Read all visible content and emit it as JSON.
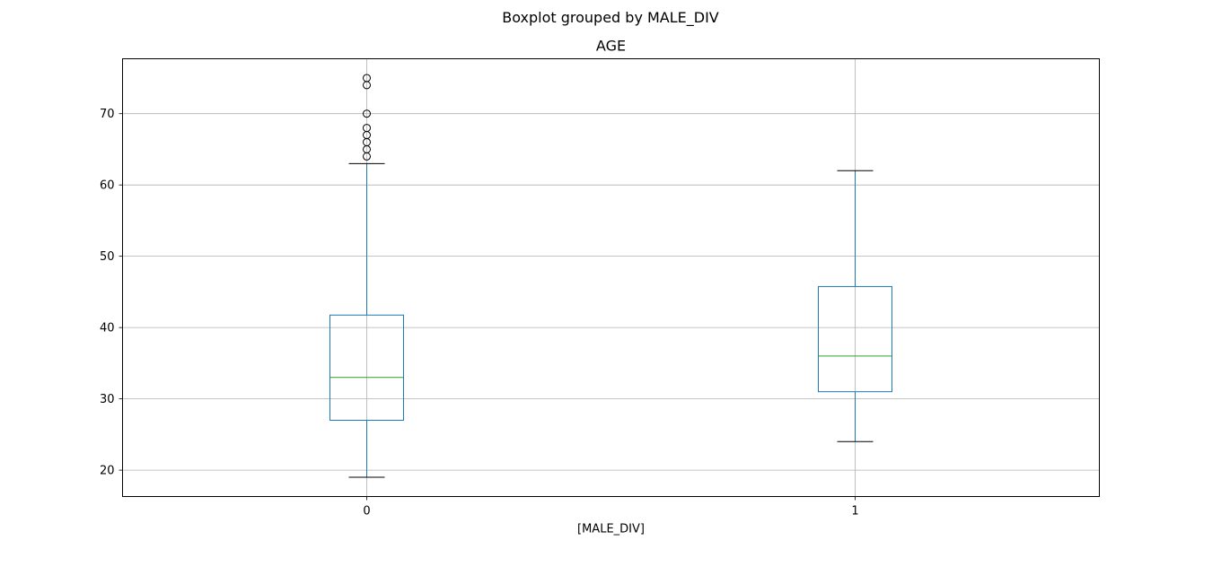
{
  "suptitle": "Boxplot grouped by MALE_DIV",
  "chart_data": {
    "type": "box",
    "title": "AGE",
    "xlabel": "[MALE_DIV]",
    "ylabel": "",
    "categories": [
      "0",
      "1"
    ],
    "ylim": [
      16.3,
      77.7
    ],
    "yticks": [
      20,
      30,
      40,
      50,
      60,
      70
    ],
    "grid": true,
    "boxes": [
      {
        "category": "0",
        "whisker_low": 19,
        "q1": 27,
        "median": 33,
        "q3": 41.75,
        "whisker_high": 63,
        "outliers": [
          64,
          65,
          66,
          67,
          68,
          70,
          74,
          75
        ]
      },
      {
        "category": "1",
        "whisker_low": 24,
        "q1": 31,
        "median": 36,
        "q3": 45.75,
        "whisker_high": 62,
        "outliers": []
      }
    ],
    "colors": {
      "box": "#1f77b4",
      "median": "#2ca02c",
      "cap": "#000000",
      "grid": "#b0b0b0",
      "outlier": "#000000"
    }
  }
}
